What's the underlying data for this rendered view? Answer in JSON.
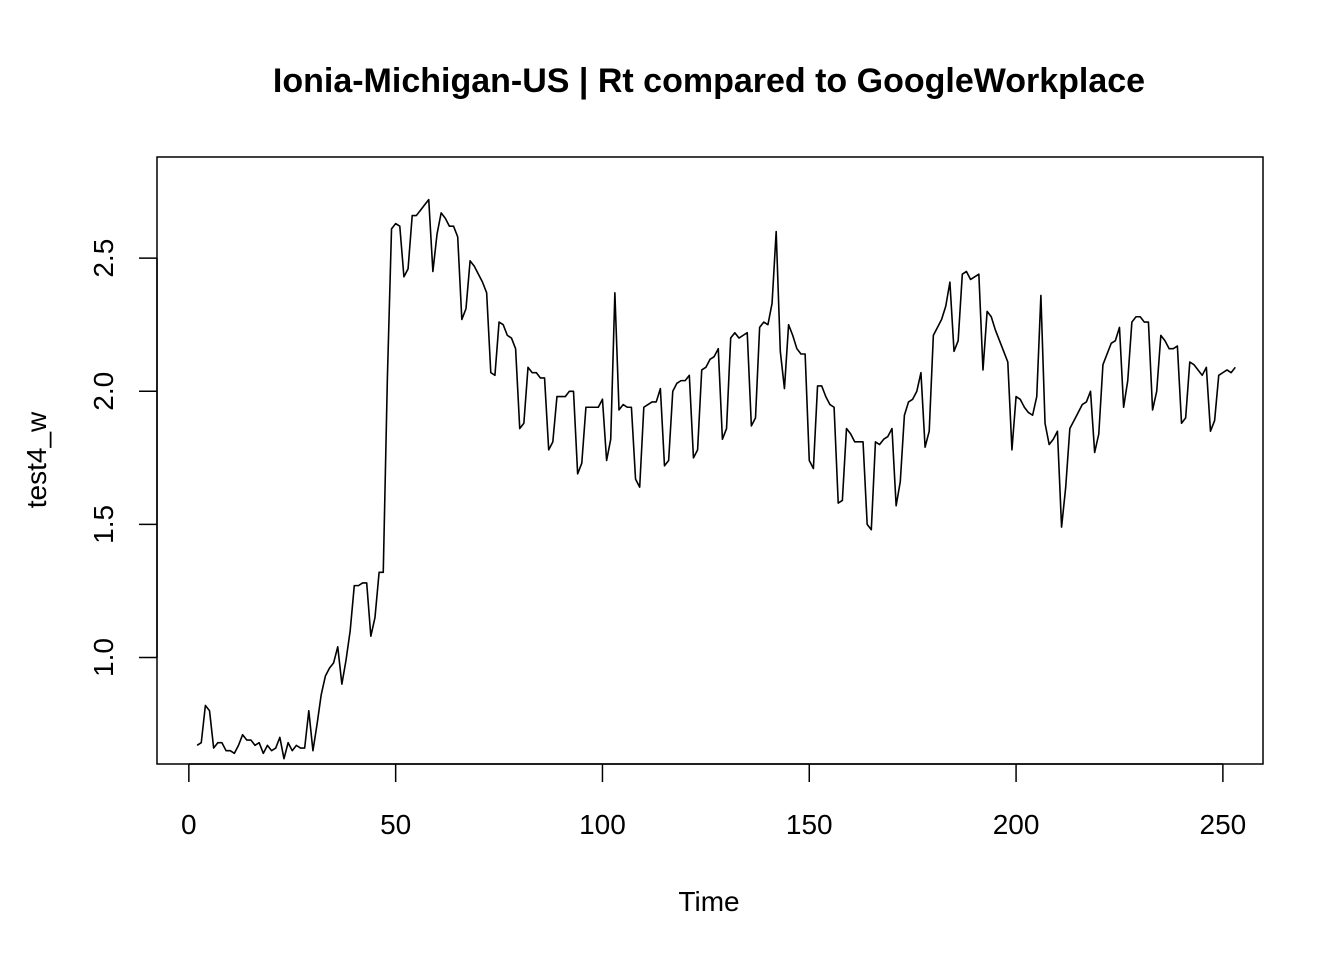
{
  "chart_data": {
    "type": "line",
    "title": "Ionia-Michigan-US | Rt compared to GoogleWorkplace",
    "xlabel": "Time",
    "ylabel": "test4_w",
    "xlim": [
      -7.7,
      259.7
    ],
    "ylim": [
      0.6,
      2.88
    ],
    "x_ticks": [
      0,
      50,
      100,
      150,
      200,
      250
    ],
    "x_tick_labels": [
      "0",
      "50",
      "100",
      "150",
      "200",
      "250"
    ],
    "y_ticks": [
      1.0,
      1.5,
      2.0,
      2.5
    ],
    "y_tick_labels": [
      "1.0",
      "1.5",
      "2.0",
      "2.5"
    ],
    "grid": false,
    "legend": "none",
    "line_color": "#000000",
    "x_start": 2,
    "series": [
      {
        "values": [
          0.67,
          0.68,
          0.82,
          0.8,
          0.66,
          0.68,
          0.68,
          0.65,
          0.65,
          0.64,
          0.67,
          0.71,
          0.69,
          0.69,
          0.67,
          0.68,
          0.64,
          0.67,
          0.65,
          0.66,
          0.7,
          0.62,
          0.68,
          0.65,
          0.67,
          0.66,
          0.66,
          0.8,
          0.65,
          0.75,
          0.86,
          0.93,
          0.96,
          0.98,
          1.04,
          0.9,
          0.99,
          1.1,
          1.27,
          1.27,
          1.28,
          1.28,
          1.08,
          1.15,
          1.32,
          1.32,
          2.05,
          2.61,
          2.63,
          2.62,
          2.43,
          2.46,
          2.66,
          2.66,
          2.68,
          2.7,
          2.72,
          2.45,
          2.59,
          2.67,
          2.65,
          2.62,
          2.62,
          2.58,
          2.27,
          2.31,
          2.49,
          2.47,
          2.44,
          2.41,
          2.37,
          2.07,
          2.06,
          2.26,
          2.25,
          2.21,
          2.2,
          2.16,
          1.86,
          1.88,
          2.09,
          2.07,
          2.07,
          2.05,
          2.05,
          1.78,
          1.81,
          1.98,
          1.98,
          1.98,
          2.0,
          2.0,
          1.69,
          1.73,
          1.94,
          1.94,
          1.94,
          1.94,
          1.97,
          1.74,
          1.82,
          2.37,
          1.93,
          1.95,
          1.94,
          1.94,
          1.67,
          1.64,
          1.94,
          1.95,
          1.96,
          1.96,
          2.01,
          1.72,
          1.74,
          2.0,
          2.03,
          2.04,
          2.04,
          2.06,
          1.75,
          1.78,
          2.08,
          2.09,
          2.12,
          2.13,
          2.16,
          1.82,
          1.86,
          2.2,
          2.22,
          2.2,
          2.21,
          2.22,
          1.87,
          1.9,
          2.24,
          2.26,
          2.25,
          2.33,
          2.6,
          2.15,
          2.01,
          2.25,
          2.21,
          2.16,
          2.14,
          2.14,
          1.74,
          1.71,
          2.02,
          2.02,
          1.98,
          1.95,
          1.94,
          1.58,
          1.59,
          1.86,
          1.84,
          1.81,
          1.81,
          1.81,
          1.5,
          1.48,
          1.81,
          1.8,
          1.82,
          1.83,
          1.86,
          1.57,
          1.66,
          1.91,
          1.96,
          1.97,
          2.0,
          2.07,
          1.79,
          1.85,
          2.21,
          2.24,
          2.27,
          2.32,
          2.41,
          2.15,
          2.19,
          2.44,
          2.45,
          2.42,
          2.43,
          2.44,
          2.08,
          2.3,
          2.28,
          2.23,
          2.19,
          2.15,
          2.11,
          1.78,
          1.98,
          1.97,
          1.94,
          1.92,
          1.91,
          1.98,
          2.36,
          1.88,
          1.8,
          1.82,
          1.85,
          1.49,
          1.64,
          1.86,
          1.89,
          1.92,
          1.95,
          1.96,
          2.0,
          1.77,
          1.84,
          2.1,
          2.14,
          2.18,
          2.19,
          2.24,
          1.94,
          2.04,
          2.26,
          2.28,
          2.28,
          2.26,
          2.26,
          1.93,
          2.0,
          2.21,
          2.19,
          2.16,
          2.16,
          2.17,
          1.88,
          1.9,
          2.11,
          2.1,
          2.08,
          2.06,
          2.09,
          1.85,
          1.89,
          2.06,
          2.07,
          2.08,
          2.07,
          2.09
        ]
      }
    ]
  }
}
